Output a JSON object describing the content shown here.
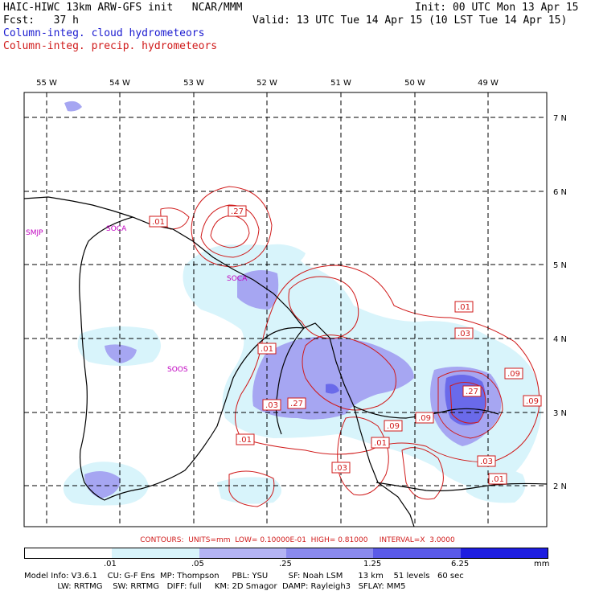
{
  "header": {
    "line1_left": "HAIC-HIWC 13km ARW-GFS init   NCAR/MMM",
    "line1_right": "Init: 00 UTC Mon 13 Apr 15",
    "line2_left": "Fcst:   37 h",
    "line2_right": "Valid: 13 UTC Tue 14 Apr 15 (10 LST Tue 14 Apr 15)",
    "line3": "Column-integ. cloud hydrometeors",
    "line4": "Column-integ. precip. hydrometeors",
    "cloud_color": "#1a1ad0",
    "precip_color": "#d01a1a"
  },
  "map": {
    "lon_labels": [
      "55 W",
      "54 W",
      "53 W",
      "52 W",
      "51 W",
      "50 W",
      "49 W"
    ],
    "lat_labels": [
      "7 N",
      "6 N",
      "5 N",
      "4 N",
      "3 N",
      "2 N"
    ],
    "stations": [
      "SMJP",
      "SOCA",
      "SOCA",
      "SOOS"
    ],
    "contour_labels": [
      ".27",
      ".01",
      ".01",
      ".03",
      ".01",
      ".03",
      ".27",
      ".09",
      ".09",
      ".09",
      ".27",
      ".09",
      ".01",
      ".03",
      ".03",
      ".01",
      ".01"
    ]
  },
  "legend": {
    "contours": "CONTOURS:  UNITS=mm  LOW= 0.10000E-01  HIGH= 0.81000     INTERVAL=X  3.0000",
    "colorbar_labels": [
      ".01",
      ".05",
      ".25",
      "1.25",
      "6.25",
      "mm"
    ],
    "colors": [
      "#ffffff",
      "#d8f4fb",
      "#b4b4f4",
      "#8a8aee",
      "#5a5ae8",
      "#1e1ee0"
    ]
  },
  "model_info": {
    "line1": "Model Info: V3.6.1    CU: G-F Ens  MP: Thompson     PBL: YSU        SF: Noah LSM      13 km    51 levels   60 sec",
    "line2": "             LW: RRTMG    SW: RRTMG   DIFF: full     KM: 2D Smagor  DAMP: Rayleigh3   SFLAY: MM5"
  }
}
